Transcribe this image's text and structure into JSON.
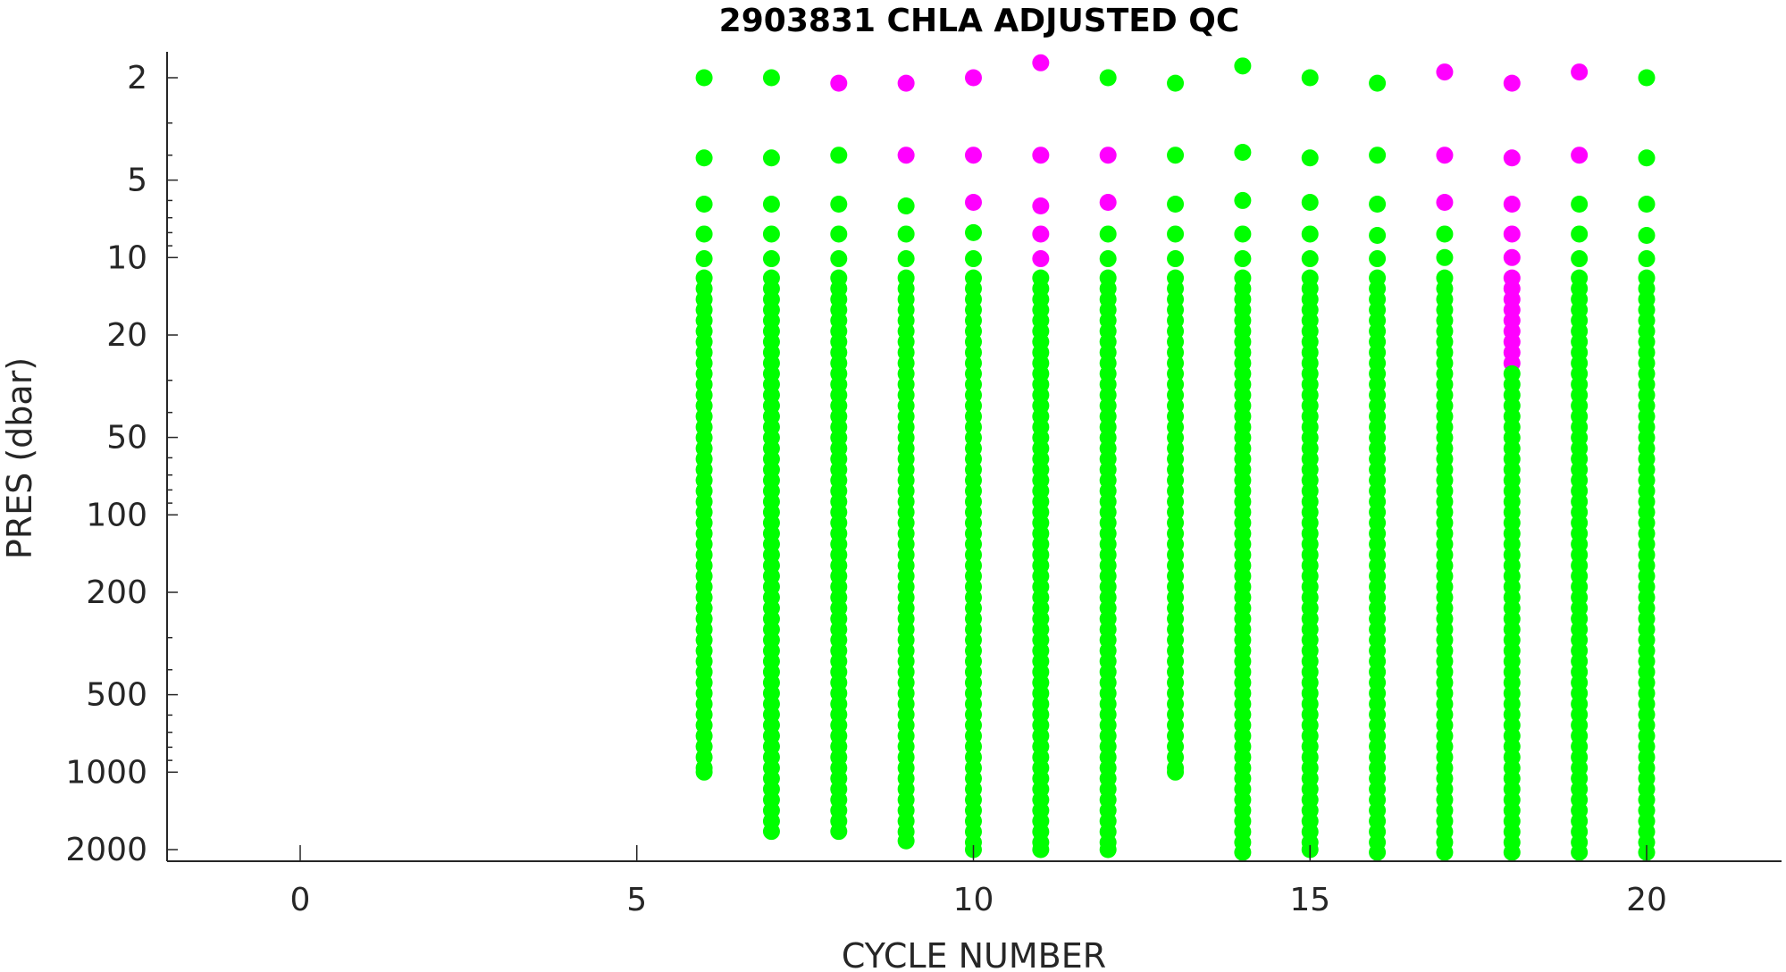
{
  "chart_data": {
    "type": "scatter",
    "title": "2903831  CHLA ADJUSTED QC",
    "xlabel": "CYCLE NUMBER",
    "ylabel": "PRES (dbar)",
    "xlim": [
      -2,
      22
    ],
    "ylim": [
      1.7,
      2150
    ],
    "y_scale": "log",
    "y_reversed": true,
    "xticks": [
      0,
      5,
      10,
      15,
      20
    ],
    "xtick_labels": [
      "0",
      "5",
      "10",
      "15",
      "20"
    ],
    "yticks": [
      2,
      5,
      10,
      20,
      50,
      100,
      200,
      500,
      1000,
      2000
    ],
    "ytick_labels": [
      "2",
      "5",
      "10",
      "20",
      "50",
      "100",
      "200",
      "500",
      "1000",
      "2000"
    ],
    "grid": false,
    "legend": "none",
    "colors": {
      "good": "#00ff00",
      "flagged": "#ff00ff"
    },
    "profiles": [
      {
        "cycle": 6,
        "max_pres": 1000,
        "top": [
          [
            2.0,
            "good"
          ],
          [
            4.1,
            "good"
          ],
          [
            6.2,
            "good"
          ],
          [
            8.1,
            "good"
          ],
          [
            10.1,
            "good"
          ]
        ]
      },
      {
        "cycle": 7,
        "max_pres": 1700,
        "top": [
          [
            2.0,
            "good"
          ],
          [
            4.1,
            "good"
          ],
          [
            6.2,
            "good"
          ],
          [
            8.1,
            "good"
          ],
          [
            10.1,
            "good"
          ]
        ]
      },
      {
        "cycle": 8,
        "max_pres": 1700,
        "top": [
          [
            2.1,
            "flagged"
          ],
          [
            4.0,
            "good"
          ],
          [
            6.2,
            "good"
          ],
          [
            8.1,
            "good"
          ],
          [
            10.1,
            "good"
          ]
        ]
      },
      {
        "cycle": 9,
        "max_pres": 1850,
        "top": [
          [
            2.1,
            "flagged"
          ],
          [
            4.0,
            "flagged"
          ],
          [
            6.3,
            "good"
          ],
          [
            8.1,
            "good"
          ],
          [
            10.1,
            "good"
          ]
        ]
      },
      {
        "cycle": 10,
        "max_pres": 2000,
        "top": [
          [
            2.0,
            "flagged"
          ],
          [
            4.0,
            "flagged"
          ],
          [
            6.1,
            "flagged"
          ],
          [
            8.0,
            "good"
          ],
          [
            10.1,
            "good"
          ]
        ]
      },
      {
        "cycle": 11,
        "max_pres": 2000,
        "top": [
          [
            1.75,
            "flagged"
          ],
          [
            4.0,
            "flagged"
          ],
          [
            6.3,
            "flagged"
          ],
          [
            8.1,
            "flagged"
          ],
          [
            10.1,
            "flagged"
          ]
        ]
      },
      {
        "cycle": 12,
        "max_pres": 2000,
        "top": [
          [
            2.0,
            "good"
          ],
          [
            4.0,
            "flagged"
          ],
          [
            6.1,
            "flagged"
          ],
          [
            8.1,
            "good"
          ],
          [
            10.1,
            "good"
          ]
        ]
      },
      {
        "cycle": 13,
        "max_pres": 1000,
        "top": [
          [
            2.1,
            "good"
          ],
          [
            4.0,
            "good"
          ],
          [
            6.2,
            "good"
          ],
          [
            8.1,
            "good"
          ],
          [
            10.1,
            "good"
          ]
        ]
      },
      {
        "cycle": 14,
        "max_pres": 2050,
        "top": [
          [
            1.8,
            "good"
          ],
          [
            3.9,
            "good"
          ],
          [
            6.0,
            "good"
          ],
          [
            8.1,
            "good"
          ],
          [
            10.1,
            "good"
          ]
        ]
      },
      {
        "cycle": 15,
        "max_pres": 2000,
        "top": [
          [
            2.0,
            "good"
          ],
          [
            4.1,
            "good"
          ],
          [
            6.1,
            "good"
          ],
          [
            8.1,
            "good"
          ],
          [
            10.1,
            "good"
          ]
        ]
      },
      {
        "cycle": 16,
        "max_pres": 2050,
        "top": [
          [
            2.1,
            "good"
          ],
          [
            4.0,
            "good"
          ],
          [
            6.2,
            "good"
          ],
          [
            8.2,
            "good"
          ],
          [
            10.1,
            "good"
          ]
        ]
      },
      {
        "cycle": 17,
        "max_pres": 2050,
        "top": [
          [
            1.9,
            "flagged"
          ],
          [
            4.0,
            "flagged"
          ],
          [
            6.1,
            "flagged"
          ],
          [
            8.1,
            "good"
          ],
          [
            10.0,
            "good"
          ]
        ]
      },
      {
        "cycle": 18,
        "max_pres": 2050,
        "top": [
          [
            2.1,
            "flagged"
          ],
          [
            4.1,
            "flagged"
          ],
          [
            6.2,
            "flagged"
          ],
          [
            8.1,
            "flagged"
          ],
          [
            10.0,
            "flagged"
          ]
        ],
        "flagged_until": 26
      },
      {
        "cycle": 19,
        "max_pres": 2050,
        "top": [
          [
            1.9,
            "flagged"
          ],
          [
            4.0,
            "flagged"
          ],
          [
            6.2,
            "good"
          ],
          [
            8.1,
            "good"
          ],
          [
            10.1,
            "good"
          ]
        ]
      },
      {
        "cycle": 20,
        "max_pres": 2050,
        "top": [
          [
            2.0,
            "good"
          ],
          [
            4.1,
            "good"
          ],
          [
            6.2,
            "good"
          ],
          [
            8.2,
            "good"
          ],
          [
            10.1,
            "good"
          ]
        ]
      }
    ]
  }
}
